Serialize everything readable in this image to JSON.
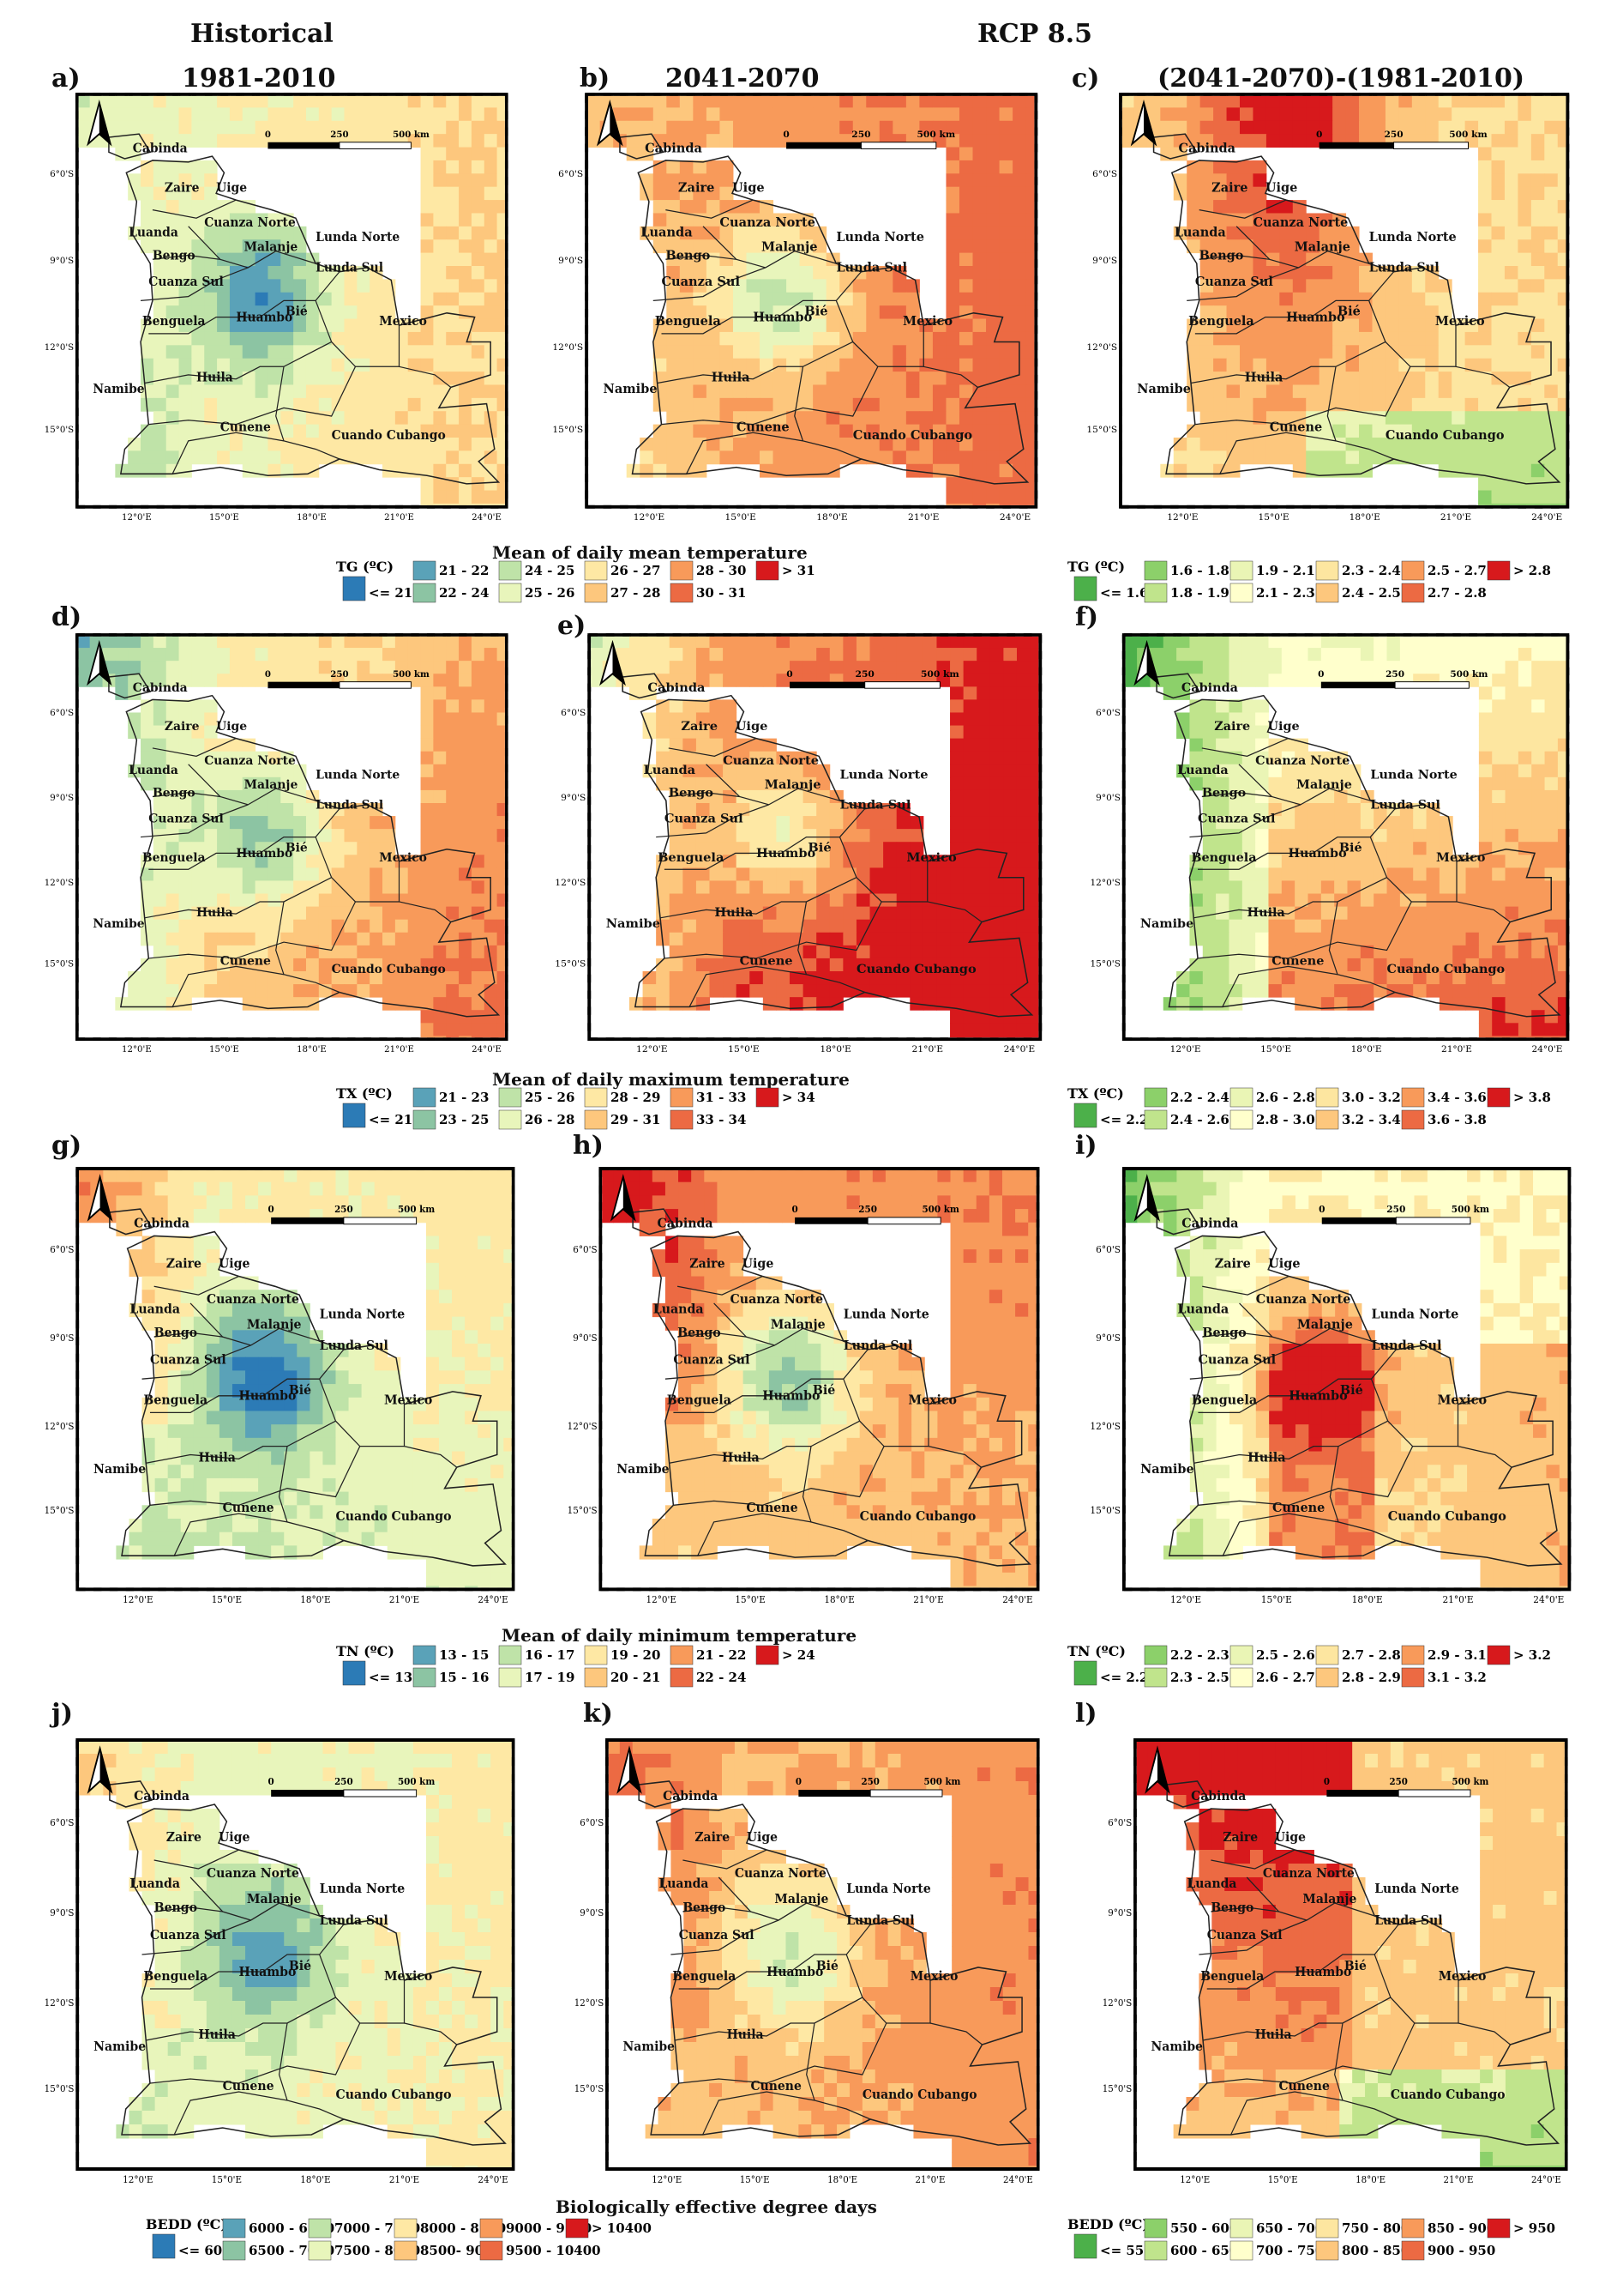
{
  "headers": {
    "historical": "Historical",
    "rcp": "RCP 8.5"
  },
  "columns": [
    {
      "label": "a)",
      "title": "1981-2010"
    },
    {
      "label": "b)",
      "title": "2041-2070"
    },
    {
      "label": "c)",
      "title": "(2041-2070)-(1981-2010)"
    }
  ],
  "panel_labels": [
    "a)",
    "b)",
    "c)",
    "d)",
    "e)",
    "f)",
    "g)",
    "h)",
    "i)",
    "j)",
    "k)",
    "l)"
  ],
  "map_axes": {
    "lat_ticks": [
      "6°0'S",
      "9°0'S",
      "12°0'S",
      "15°0'S"
    ],
    "lon_ticks": [
      "12°0'E",
      "15°0'E",
      "18°0'E",
      "21°0'E",
      "24°0'E"
    ],
    "scale_bar": [
      "0",
      "250",
      "500 km"
    ]
  },
  "provinces": [
    "Cabinda",
    "Zaire",
    "Uige",
    "Luanda",
    "Cuanza Norte",
    "Bengo",
    "Malanje",
    "Lunda Norte",
    "Lunda Sul",
    "Cuanza Sul",
    "Benguela",
    "Huambo",
    "Bié",
    "Mexico",
    "Namibe",
    "Huila",
    "Cunene",
    "Cuando Cubango"
  ],
  "rows": [
    {
      "variable_title": "Mean of daily mean temperature",
      "abs_legend": {
        "var": "TG (ºC)",
        "items": [
          "<= 21",
          "21 - 22",
          "22 - 24",
          "24 - 25",
          "25 - 26",
          "26 - 27",
          "27 - 28",
          "28 - 30",
          "30 - 31",
          "> 31"
        ],
        "colors": [
          "#2c7bb6",
          "#5aa2b8",
          "#8cc4a3",
          "#bfe3a8",
          "#e8f5bb",
          "#fee8a4",
          "#fdc77d",
          "#f89a5a",
          "#ec6a43",
          "#d7191c"
        ]
      },
      "diff_legend": {
        "var": "TG (ºC)",
        "items": [
          "<= 1.6",
          "1.6 - 1.8",
          "1.8 - 1.9",
          "1.9 - 2.1",
          "2.1 - 2.3",
          "2.3 - 2.4",
          "2.4 - 2.5",
          "2.5 - 2.7",
          "2.7 - 2.8",
          "> 2.8"
        ],
        "colors": [
          "#4cb04a",
          "#8cd06a",
          "#c0e48c",
          "#eaf5b5",
          "#ffffcc",
          "#fde6a0",
          "#fdc77d",
          "#f89a5a",
          "#ec6a43",
          "#d7191c"
        ]
      }
    },
    {
      "variable_title": "Mean of daily maximum temperature",
      "abs_legend": {
        "var": "TX (ºC)",
        "items": [
          "<= 21",
          "21 - 23",
          "23 - 25",
          "25 - 26",
          "26 - 28",
          "28 - 29",
          "29 - 31",
          "31 - 33",
          "33 - 34",
          "> 34"
        ],
        "colors": [
          "#2c7bb6",
          "#5aa2b8",
          "#8cc4a3",
          "#bfe3a8",
          "#e8f5bb",
          "#fee8a4",
          "#fdc77d",
          "#f89a5a",
          "#ec6a43",
          "#d7191c"
        ]
      },
      "diff_legend": {
        "var": "TX (ºC)",
        "items": [
          "<= 2.2",
          "2.2 - 2.4",
          "2.4 - 2.6",
          "2.6 - 2.8",
          "2.8 - 3.0",
          "3.0 - 3.2",
          "3.2 - 3.4",
          "3.4 - 3.6",
          "3.6 - 3.8",
          "> 3.8"
        ],
        "colors": [
          "#4cb04a",
          "#8cd06a",
          "#c0e48c",
          "#eaf5b5",
          "#ffffcc",
          "#fde6a0",
          "#fdc77d",
          "#f89a5a",
          "#ec6a43",
          "#d7191c"
        ]
      }
    },
    {
      "variable_title": "Mean of daily minimum temperature",
      "abs_legend": {
        "var": "TN (ºC)",
        "items": [
          "<= 13",
          "13 - 15",
          "15 - 16",
          "16 - 17",
          "17 - 19",
          "19 - 20",
          "20 - 21",
          "21 - 22",
          "22 - 24",
          "> 24"
        ],
        "colors": [
          "#2c7bb6",
          "#5aa2b8",
          "#8cc4a3",
          "#bfe3a8",
          "#e8f5bb",
          "#fee8a4",
          "#fdc77d",
          "#f89a5a",
          "#ec6a43",
          "#d7191c"
        ]
      },
      "diff_legend": {
        "var": "TN (ºC)",
        "items": [
          "<= 2.2",
          "2.2 - 2.3",
          "2.3 - 2.5",
          "2.5 - 2.6",
          "2.6 - 2.7",
          "2.7 - 2.8",
          "2.8 - 2.9",
          "2.9 - 3.1",
          "3.1 - 3.2",
          "> 3.2"
        ],
        "colors": [
          "#4cb04a",
          "#8cd06a",
          "#c0e48c",
          "#eaf5b5",
          "#ffffcc",
          "#fde6a0",
          "#fdc77d",
          "#f89a5a",
          "#ec6a43",
          "#d7191c"
        ]
      }
    },
    {
      "variable_title": "Biologically effective degree days",
      "abs_legend": {
        "var": "BEDD (ºC)",
        "items": [
          "<= 6000",
          "6000 - 6500",
          "6500 - 7000",
          "7000 - 7500",
          "7500 - 8000",
          "8000 - 8500",
          "8500- 9000",
          "9000 - 9500",
          "9500 - 10400",
          "> 10400"
        ],
        "colors": [
          "#2c7bb6",
          "#5aa2b8",
          "#8cc4a3",
          "#bfe3a8",
          "#e8f5bb",
          "#fee8a4",
          "#fdc77d",
          "#f89a5a",
          "#ec6a43",
          "#d7191c"
        ]
      },
      "diff_legend": {
        "var": "BEDD (ºC)",
        "items": [
          "<= 550",
          "550 - 600",
          "600 - 650",
          "650 - 700",
          "700 - 750",
          "750 - 800",
          "800 - 850",
          "850 - 900",
          "900 - 950",
          "> 950"
        ],
        "colors": [
          "#4cb04a",
          "#8cd06a",
          "#c0e48c",
          "#eaf5b5",
          "#ffffcc",
          "#fde6a0",
          "#fdc77d",
          "#f89a5a",
          "#ec6a43",
          "#d7191c"
        ]
      }
    }
  ]
}
